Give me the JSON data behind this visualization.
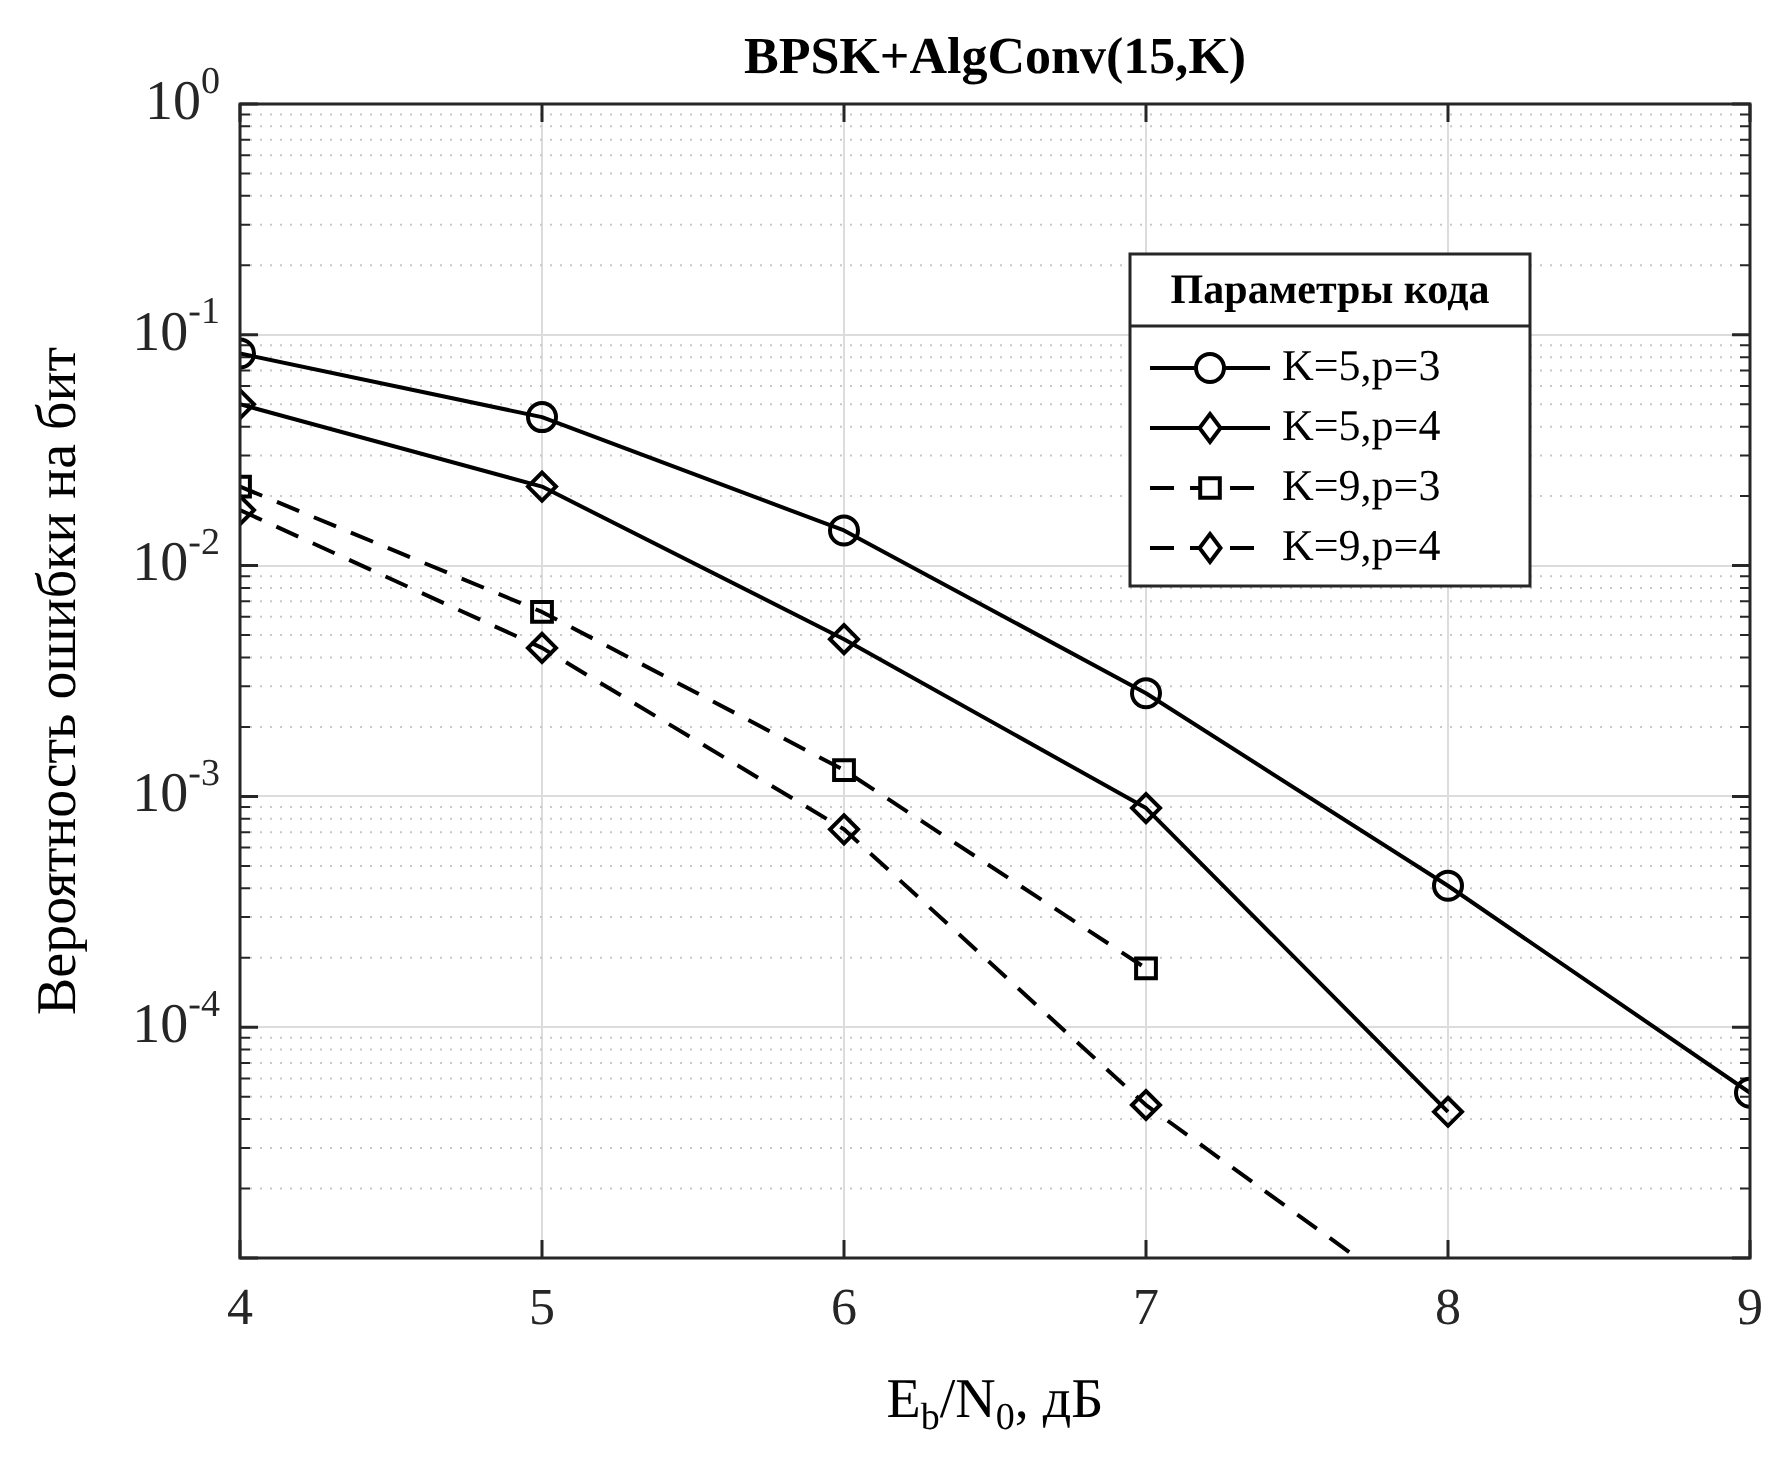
{
  "chart_data": {
    "type": "line",
    "title": "BPSK+AlgConv(15,K)",
    "xlabel": "E$_{b}$/N$_{0}$, дБ",
    "ylabel": "Вероятность ошибки на бит",
    "legend_title": "Параметры кода",
    "log": "y",
    "grid": true,
    "legend": "top right",
    "xlim": [
      4,
      9
    ],
    "xticks": [
      4,
      5,
      6,
      7,
      8,
      9
    ],
    "ylim": [
      1e-05,
      1
    ],
    "yticks": [
      {
        "value": 1,
        "label": "10$^{0}$"
      },
      {
        "value": 0.1,
        "label": "10$^{-1}$"
      },
      {
        "value": 0.01,
        "label": "10$^{-2}$"
      },
      {
        "value": 0.001,
        "label": "10$^{-3}$"
      },
      {
        "value": 0.0001,
        "label": "10$^{-4}$"
      },
      {
        "value": 1e-05,
        "label": null
      }
    ],
    "series": [
      {
        "name": "K=5,p=3",
        "color": "#000000",
        "marker": "circle",
        "line_style": "solid",
        "x": [
          4,
          5,
          6,
          7,
          8,
          9
        ],
        "values": [
          0.083,
          0.044,
          0.0142,
          0.0028,
          0.00041,
          5.2e-05
        ]
      },
      {
        "name": "K=5,p=4",
        "color": "#000000",
        "marker": "diamond",
        "line_style": "solid",
        "x": [
          4,
          5,
          6,
          7,
          8
        ],
        "values": [
          0.05,
          0.022,
          0.0048,
          0.00089,
          4.3e-05
        ]
      },
      {
        "name": "K=9,p=3",
        "color": "#000000",
        "marker": "square",
        "line_style": "dashed",
        "x": [
          4,
          5,
          6,
          7
        ],
        "values": [
          0.022,
          0.0063,
          0.0013,
          0.00018
        ]
      },
      {
        "name": "K=9,p=4",
        "color": "#000000",
        "marker": "diamond",
        "line_style": "dashed",
        "x": [
          4,
          5,
          6,
          7,
          7.7
        ],
        "values": [
          0.0174,
          0.0044,
          0.00072,
          4.6e-05,
          1e-05
        ]
      }
    ]
  }
}
